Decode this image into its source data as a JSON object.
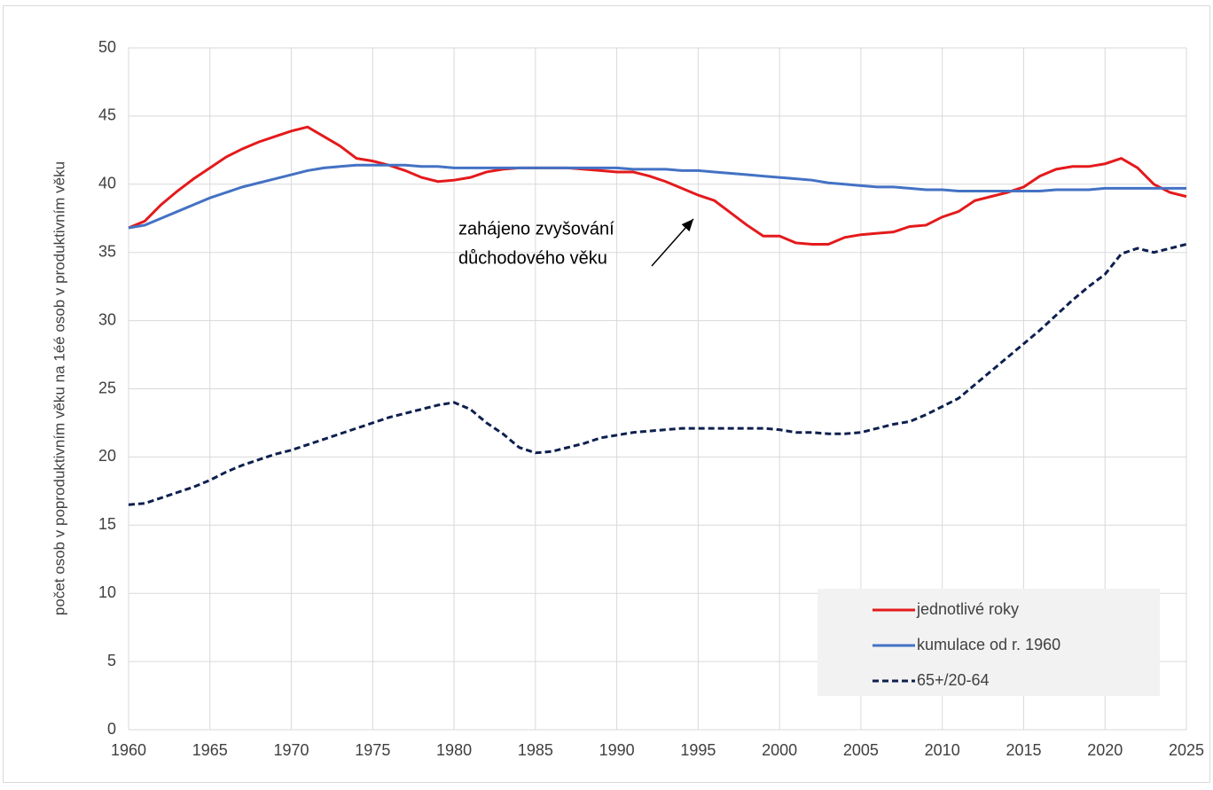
{
  "chart_data": {
    "type": "line",
    "y_label": "počet osob v poproduktivním věku na 1éé osob v produktivním věku",
    "annotation": [
      "zahájeno zvyšování",
      "důchodového věku"
    ],
    "x": [
      1960,
      1961,
      1962,
      1963,
      1964,
      1965,
      1966,
      1967,
      1968,
      1969,
      1970,
      1971,
      1972,
      1973,
      1974,
      1975,
      1976,
      1977,
      1978,
      1979,
      1980,
      1981,
      1982,
      1983,
      1984,
      1985,
      1986,
      1987,
      1988,
      1989,
      1990,
      1991,
      1992,
      1993,
      1994,
      1995,
      1996,
      1997,
      1998,
      1999,
      2000,
      2001,
      2002,
      2003,
      2004,
      2005,
      2006,
      2007,
      2008,
      2009,
      2010,
      2011,
      2012,
      2013,
      2014,
      2015,
      2016,
      2017,
      2018,
      2019,
      2020,
      2021,
      2022,
      2023,
      2024,
      2025
    ],
    "series": [
      {
        "name": "jednotlivé roky",
        "color": "#e41a1c",
        "dash": false,
        "values": [
          36.8,
          37.3,
          38.5,
          39.5,
          40.4,
          41.2,
          42.0,
          42.6,
          43.1,
          43.5,
          43.9,
          44.2,
          43.5,
          42.8,
          41.9,
          41.7,
          41.4,
          41.0,
          40.5,
          40.2,
          40.3,
          40.5,
          40.9,
          41.1,
          41.2,
          41.2,
          41.2,
          41.2,
          41.1,
          41.0,
          40.9,
          40.9,
          40.6,
          40.2,
          39.7,
          39.2,
          38.8,
          37.9,
          37.0,
          36.2,
          36.2,
          35.7,
          35.6,
          35.6,
          36.1,
          36.3,
          36.4,
          36.5,
          36.9,
          37.0,
          37.6,
          38.0,
          38.8,
          39.1,
          39.4,
          39.8,
          40.6,
          41.1,
          41.3,
          41.3,
          41.5,
          41.9,
          41.2,
          40.0,
          39.4,
          39.1
        ]
      },
      {
        "name": "kumulace od r. 1960",
        "color": "#4472c4",
        "dash": false,
        "values": [
          36.8,
          37.0,
          37.5,
          38.0,
          38.5,
          39.0,
          39.4,
          39.8,
          40.1,
          40.4,
          40.7,
          41.0,
          41.2,
          41.3,
          41.4,
          41.4,
          41.4,
          41.4,
          41.3,
          41.3,
          41.2,
          41.2,
          41.2,
          41.2,
          41.2,
          41.2,
          41.2,
          41.2,
          41.2,
          41.2,
          41.2,
          41.1,
          41.1,
          41.1,
          41.0,
          41.0,
          40.9,
          40.8,
          40.7,
          40.6,
          40.5,
          40.4,
          40.3,
          40.1,
          40.0,
          39.9,
          39.8,
          39.8,
          39.7,
          39.6,
          39.6,
          39.5,
          39.5,
          39.5,
          39.5,
          39.5,
          39.5,
          39.6,
          39.6,
          39.6,
          39.7,
          39.7,
          39.7,
          39.7,
          39.7,
          39.7
        ]
      },
      {
        "name": "65+/20-64",
        "color": "#0d1f4f",
        "dash": true,
        "values": [
          16.5,
          16.6,
          17.0,
          17.4,
          17.8,
          18.3,
          18.9,
          19.4,
          19.8,
          20.2,
          20.5,
          20.9,
          21.3,
          21.7,
          22.1,
          22.5,
          22.9,
          23.2,
          23.5,
          23.8,
          24.0,
          23.5,
          22.5,
          21.7,
          20.7,
          20.3,
          20.4,
          20.7,
          21.0,
          21.4,
          21.6,
          21.8,
          21.9,
          22.0,
          22.1,
          22.1,
          22.1,
          22.1,
          22.1,
          22.1,
          22.0,
          21.8,
          21.8,
          21.7,
          21.7,
          21.8,
          22.1,
          22.4,
          22.6,
          23.1,
          23.7,
          24.3,
          25.3,
          26.3,
          27.3,
          28.3,
          29.3,
          30.4,
          31.5,
          32.5,
          33.4,
          34.9,
          35.3,
          35.0,
          35.3,
          35.6
        ]
      }
    ],
    "xlim": [
      1960,
      2025
    ],
    "xticks": [
      1960,
      1965,
      1970,
      1975,
      1980,
      1985,
      1990,
      1995,
      2000,
      2005,
      2010,
      2015,
      2020,
      2025
    ],
    "ylim": [
      0,
      50
    ],
    "yticks": [
      0,
      5,
      10,
      15,
      20,
      25,
      30,
      35,
      40,
      45,
      50
    ],
    "grid": true,
    "legend": "lower right"
  }
}
